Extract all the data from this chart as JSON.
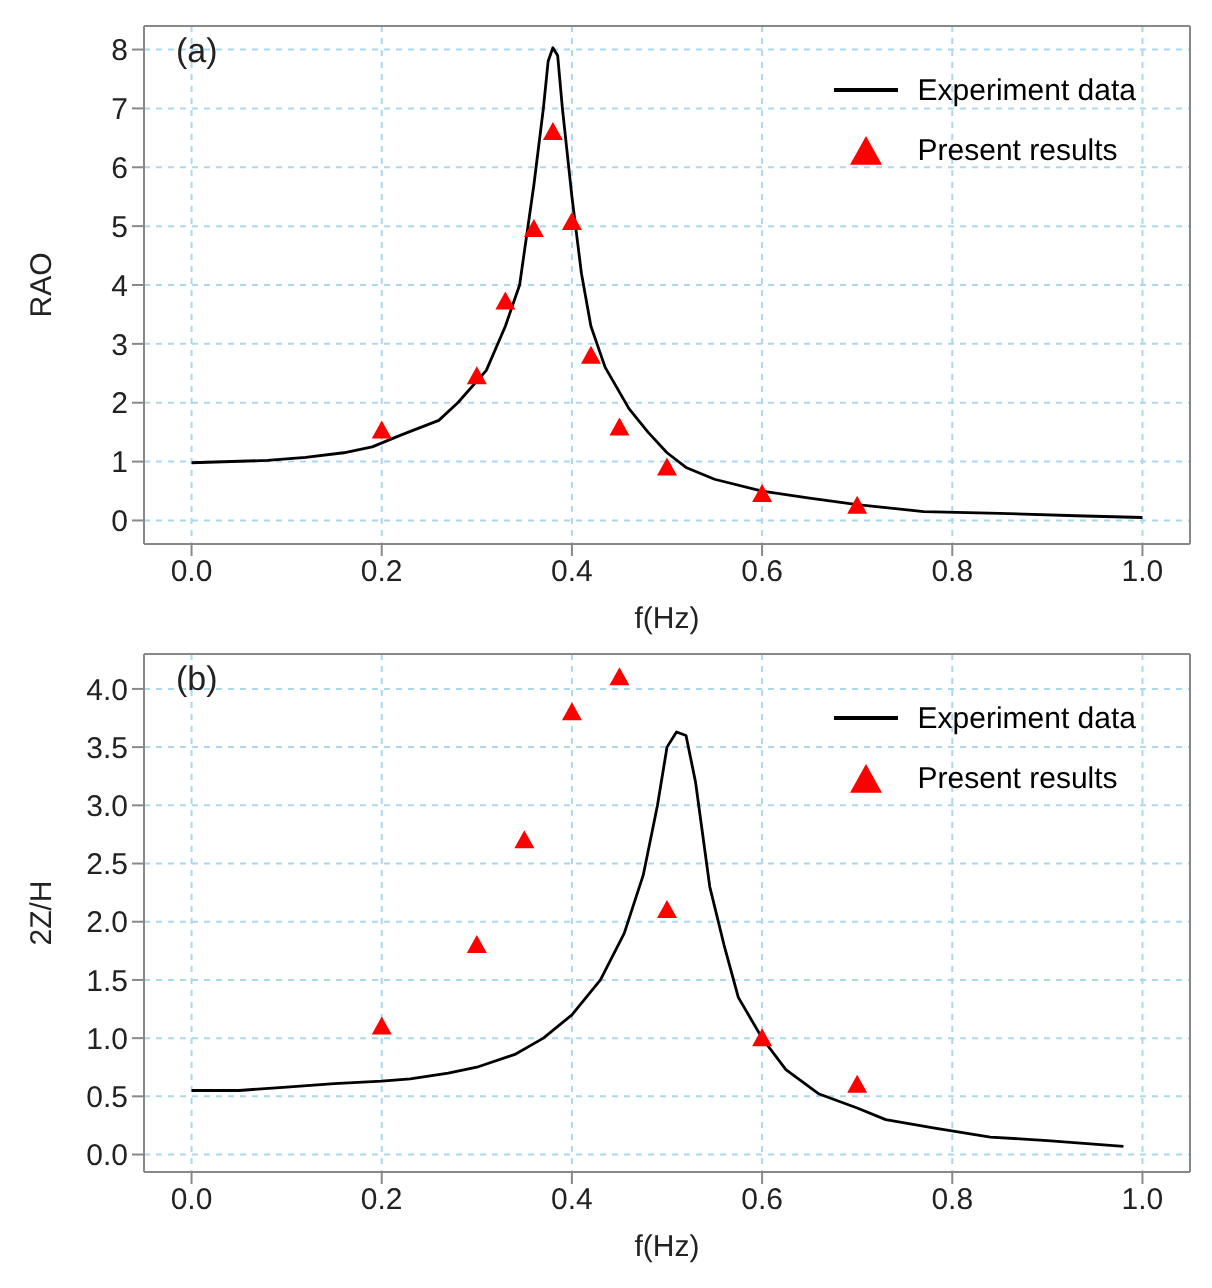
{
  "chart_data": [
    {
      "type": "line",
      "annotations": [
        "(a)"
      ],
      "xlabel": "f(Hz)",
      "ylabel": "RAO",
      "xlim": [
        -0.05,
        1.05
      ],
      "xticks": [
        {
          "value": 0,
          "label": "0.0"
        },
        {
          "value": 0.2,
          "label": "0.2"
        },
        {
          "value": 0.4,
          "label": "0.4"
        },
        {
          "value": 0.6,
          "label": "0.6"
        },
        {
          "value": 0.8,
          "label": "0.8"
        },
        {
          "value": 1,
          "label": "1.0"
        }
      ],
      "ylim": [
        -0.4,
        8.4
      ],
      "yticks": [
        0,
        1,
        2,
        3,
        4,
        5,
        6,
        7,
        8
      ],
      "grid": true,
      "legend": "top right",
      "series": [
        {
          "name": "Experiment data",
          "color": "#000000",
          "marker": "none",
          "line_style": "solid",
          "x": [
            0,
            0.08,
            0.12,
            0.16,
            0.19,
            0.22,
            0.26,
            0.28,
            0.31,
            0.33,
            0.345,
            0.36,
            0.37,
            0.375,
            0.38,
            0.385,
            0.39,
            0.4,
            0.41,
            0.42,
            0.435,
            0.46,
            0.48,
            0.5,
            0.52,
            0.55,
            0.6,
            0.65,
            0.7,
            0.77,
            0.85,
            0.93,
            1
          ],
          "values": [
            0.98,
            1.02,
            1.07,
            1.15,
            1.25,
            1.45,
            1.7,
            2,
            2.55,
            3.3,
            4,
            5.7,
            7,
            7.8,
            8.03,
            7.9,
            7,
            5.5,
            4.2,
            3.3,
            2.6,
            1.9,
            1.5,
            1.15,
            0.9,
            0.7,
            0.5,
            0.38,
            0.27,
            0.15,
            0.12,
            0.08,
            0.05
          ]
        },
        {
          "name": "Present results",
          "type": "scatter",
          "color": "#ff0000",
          "marker": "triangle",
          "x": [
            0.2,
            0.3,
            0.33,
            0.36,
            0.38,
            0.4,
            0.42,
            0.45,
            0.5,
            0.6,
            0.7
          ],
          "values": [
            1.53,
            2.45,
            3.72,
            4.95,
            6.6,
            5.07,
            2.8,
            1.58,
            0.9,
            0.45,
            0.25
          ]
        }
      ]
    },
    {
      "type": "line",
      "annotations": [
        "(b)"
      ],
      "xlabel": "f(Hz)",
      "ylabel": "2Z/H",
      "xlim": [
        -0.05,
        1.05
      ],
      "xticks": [
        {
          "value": 0,
          "label": "0.0"
        },
        {
          "value": 0.2,
          "label": "0.2"
        },
        {
          "value": 0.4,
          "label": "0.4"
        },
        {
          "value": 0.6,
          "label": "0.6"
        },
        {
          "value": 0.8,
          "label": "0.8"
        },
        {
          "value": 1,
          "label": "1.0"
        }
      ],
      "ylim": [
        -0.15,
        4.3
      ],
      "yticks": [
        {
          "value": 0,
          "label": "0.0"
        },
        {
          "value": 0.5,
          "label": "0.5"
        },
        {
          "value": 1,
          "label": "1.0"
        },
        {
          "value": 1.5,
          "label": "1.5"
        },
        {
          "value": 2,
          "label": "2.0"
        },
        {
          "value": 2.5,
          "label": "2.5"
        },
        {
          "value": 3,
          "label": "3.0"
        },
        {
          "value": 3.5,
          "label": "3.5"
        },
        {
          "value": 4,
          "label": "4.0"
        }
      ],
      "grid": true,
      "legend": "top right",
      "series": [
        {
          "name": "Experiment data",
          "color": "#000000",
          "marker": "none",
          "line_style": "solid",
          "x": [
            0,
            0.05,
            0.1,
            0.15,
            0.2,
            0.23,
            0.27,
            0.3,
            0.34,
            0.37,
            0.4,
            0.43,
            0.455,
            0.475,
            0.49,
            0.5,
            0.51,
            0.52,
            0.53,
            0.545,
            0.56,
            0.575,
            0.6,
            0.625,
            0.66,
            0.7,
            0.73,
            0.78,
            0.84,
            0.9,
            0.98
          ],
          "values": [
            0.55,
            0.55,
            0.58,
            0.61,
            0.63,
            0.65,
            0.7,
            0.75,
            0.86,
            1,
            1.2,
            1.5,
            1.9,
            2.4,
            3,
            3.5,
            3.63,
            3.6,
            3.2,
            2.3,
            1.8,
            1.35,
            1,
            0.73,
            0.52,
            0.4,
            0.3,
            0.23,
            0.15,
            0.12,
            0.07
          ]
        },
        {
          "name": "Present results",
          "type": "scatter",
          "color": "#ff0000",
          "marker": "triangle",
          "x": [
            0.2,
            0.3,
            0.35,
            0.4,
            0.45,
            0.5,
            0.6,
            0.7
          ],
          "values": [
            1.1,
            1.8,
            2.7,
            3.8,
            4.1,
            2.1,
            1,
            0.6
          ]
        }
      ]
    }
  ]
}
